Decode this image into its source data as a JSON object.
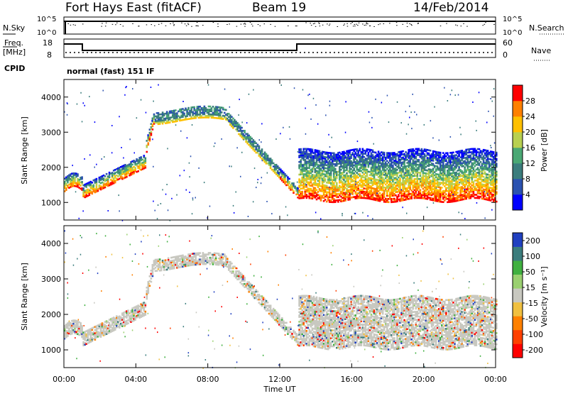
{
  "header": {
    "station": "Fort Hays East (fitACF)",
    "beam": "Beam 19",
    "date": "14/Feb/2014"
  },
  "top_panels": {
    "nsky_label": "N.Sky",
    "nsky_ticks": [
      "10^5",
      "10^0"
    ],
    "nsearch_label": "N.Search",
    "nsearch_ticks": [
      "10^5",
      "10^0"
    ],
    "freq_label_1": "Freq.",
    "freq_label_2": "[MHz]",
    "freq_ticks": [
      "18",
      "8"
    ],
    "nave_label": "Nave",
    "nave_ticks": [
      "60",
      "0"
    ],
    "cpid_label": "CPID",
    "cpid_text": "normal (fast) 151 IF"
  },
  "chart_data": [
    {
      "type": "heatmap",
      "name": "power",
      "ylabel": "Slant Range [km]",
      "yticks": [
        "1000",
        "2000",
        "3000",
        "4000"
      ],
      "ylim": [
        500,
        4500
      ],
      "colorbar_label": "Power [dB]",
      "colorbar_ticks": [
        "4",
        "8",
        "12",
        "16",
        "20",
        "24",
        "28"
      ],
      "colors": [
        "#0000ff",
        "#2b52b0",
        "#3b7d7d",
        "#4aa874",
        "#b8d050",
        "#ffc000",
        "#ff8000",
        "#ff0000"
      ]
    },
    {
      "type": "heatmap",
      "name": "velocity",
      "ylabel": "Slant Range [km]",
      "yticks": [
        "1000",
        "2000",
        "3000",
        "4000"
      ],
      "ylim": [
        500,
        4500
      ],
      "colorbar_label": "Velocity [m s⁻¹]",
      "colorbar_ticks": [
        "200",
        "100",
        "50",
        "15",
        "-15",
        "-50",
        "-100",
        "-200"
      ],
      "colors": [
        "#2040c0",
        "#3b7d7d",
        "#40b040",
        "#9ad070",
        "#c8c8c0",
        "#f0c040",
        "#ff8000",
        "#ff4000",
        "#ff0000"
      ]
    }
  ],
  "x_axis": {
    "ticks": [
      "00:00",
      "04:00",
      "08:00",
      "12:00",
      "16:00",
      "20:00",
      "00:00"
    ],
    "label": "Time UT"
  }
}
